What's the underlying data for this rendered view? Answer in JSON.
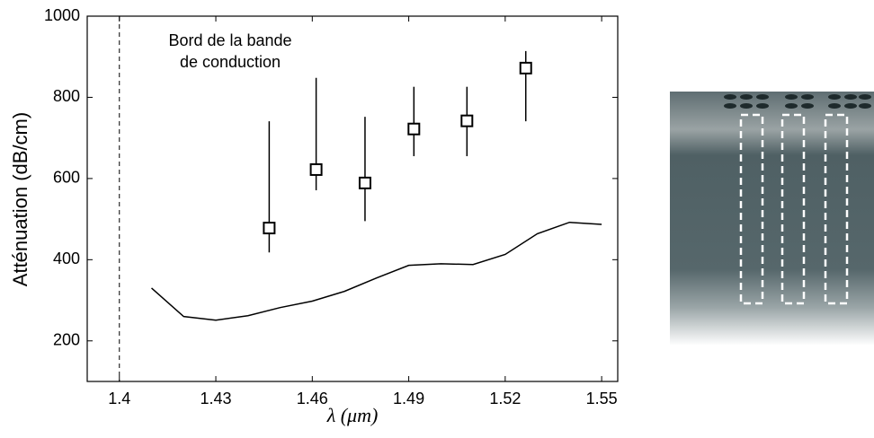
{
  "chart_data": {
    "type": "scatter",
    "ylabel": "Atténuation (dB/cm)",
    "xlabel": "λ (μm)",
    "annotation": [
      "Bord de la bande",
      "de conduction"
    ],
    "vline": 1.4,
    "xlim": [
      1.39,
      1.555
    ],
    "ylim": [
      100,
      1000
    ],
    "xticks": [
      1.4,
      1.43,
      1.46,
      1.49,
      1.52,
      1.55
    ],
    "yticks": [
      200,
      400,
      600,
      800,
      1000
    ],
    "color": "#000000",
    "points": {
      "x": [
        1.4466,
        1.4612,
        1.4764,
        1.4916,
        1.5081,
        1.5264
      ],
      "values": [
        478,
        622,
        589,
        722,
        742,
        872
      ],
      "low": [
        418,
        571,
        495,
        655,
        655,
        741
      ],
      "high": [
        741,
        848,
        752,
        826,
        826,
        914
      ]
    },
    "line": {
      "x": [
        1.41,
        1.42,
        1.43,
        1.44,
        1.45,
        1.46,
        1.47,
        1.48,
        1.49,
        1.5,
        1.51,
        1.52,
        1.53,
        1.54,
        1.55
      ],
      "values": [
        330,
        260,
        251,
        262,
        282,
        298,
        322,
        355,
        386,
        390,
        388,
        413,
        464,
        492,
        487
      ]
    }
  }
}
